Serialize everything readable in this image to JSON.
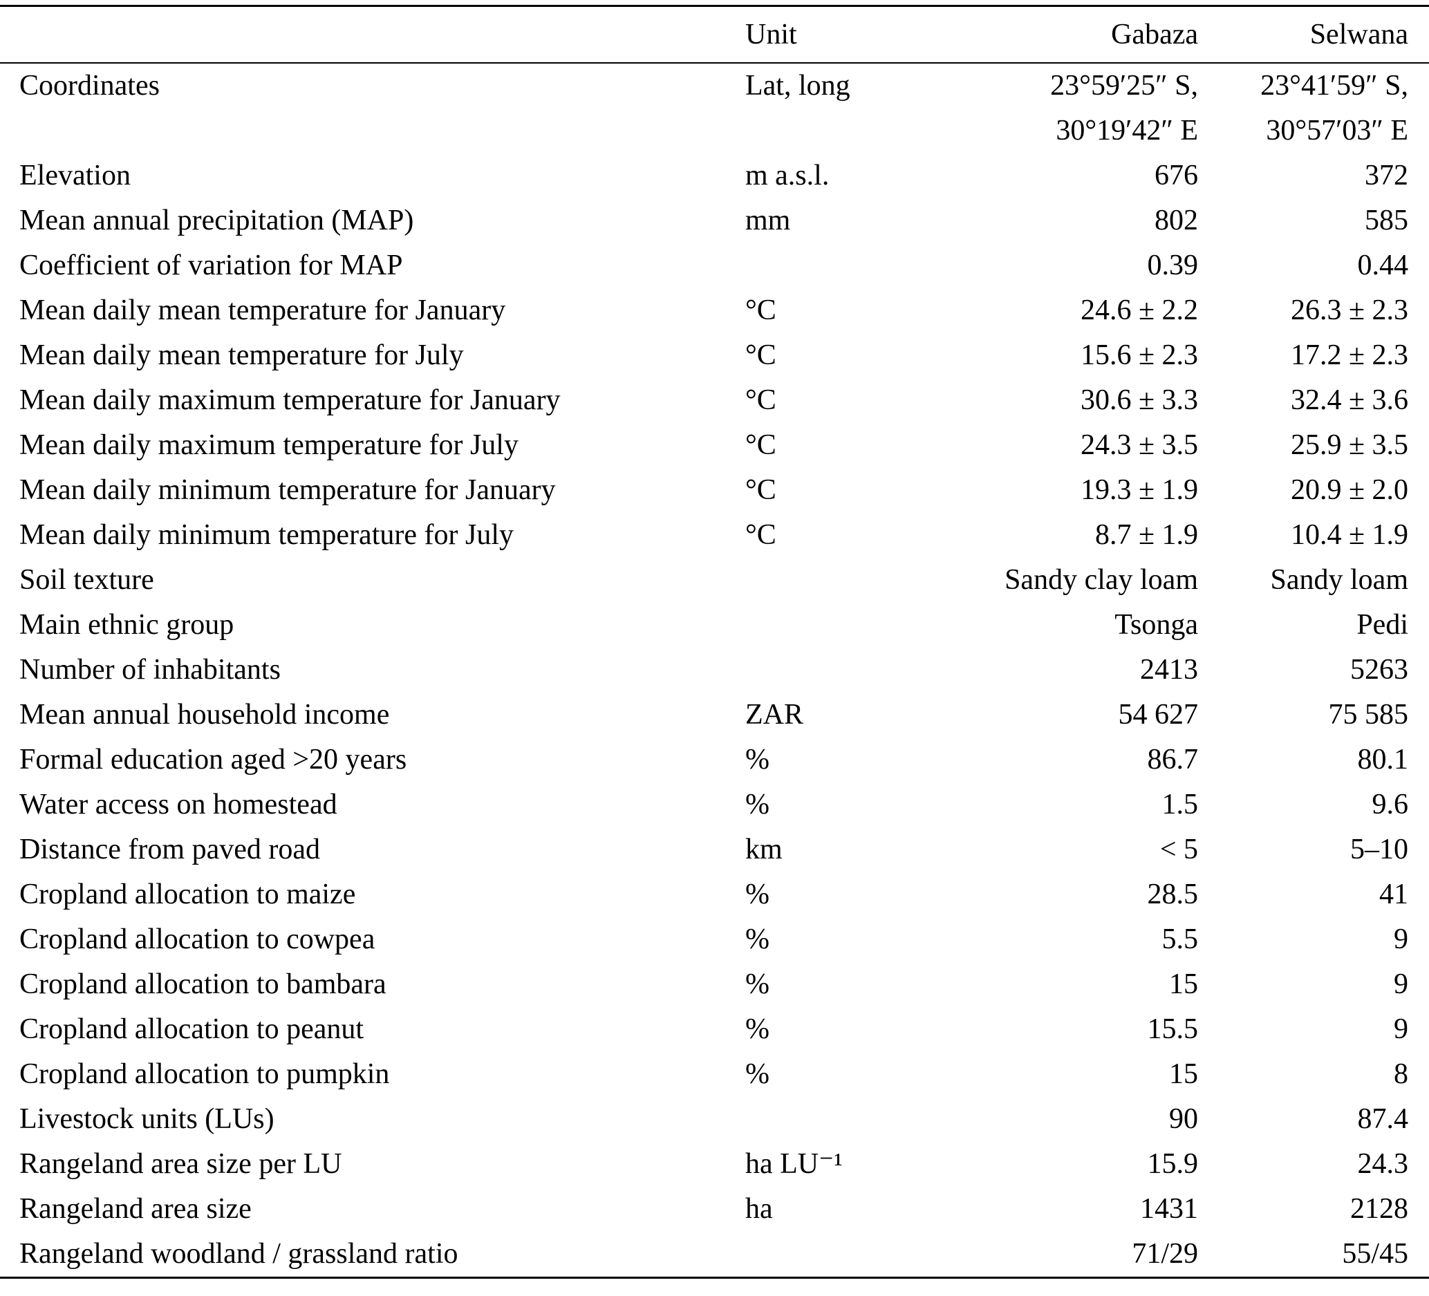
{
  "table": {
    "columns": [
      "",
      "Unit",
      "Gabaza",
      "Selwana"
    ],
    "rows": [
      {
        "label": "Coordinates",
        "unit": "Lat, long",
        "gabaza": "23°59′25″ S,\n30°19′42″ E",
        "selwana": "23°41′59″ S,\n30°57′03″ E"
      },
      {
        "label": "Elevation",
        "unit": "m a.s.l.",
        "gabaza": "676",
        "selwana": "372"
      },
      {
        "label": "Mean annual precipitation (MAP)",
        "unit": "mm",
        "gabaza": "802",
        "selwana": "585"
      },
      {
        "label": "Coefficient of variation for MAP",
        "unit": "",
        "gabaza": "0.39",
        "selwana": "0.44"
      },
      {
        "label": "Mean daily mean temperature for January",
        "unit": "°C",
        "gabaza": "24.6 ± 2.2",
        "selwana": "26.3 ± 2.3"
      },
      {
        "label": "Mean daily mean temperature for July",
        "unit": "°C",
        "gabaza": "15.6 ± 2.3",
        "selwana": "17.2 ± 2.3"
      },
      {
        "label": "Mean daily maximum temperature for January",
        "unit": "°C",
        "gabaza": "30.6 ± 3.3",
        "selwana": "32.4 ± 3.6"
      },
      {
        "label": "Mean daily maximum temperature for July",
        "unit": "°C",
        "gabaza": "24.3 ± 3.5",
        "selwana": "25.9 ± 3.5"
      },
      {
        "label": "Mean daily minimum temperature for January",
        "unit": "°C",
        "gabaza": "19.3 ± 1.9",
        "selwana": "20.9 ± 2.0"
      },
      {
        "label": "Mean daily minimum temperature for July",
        "unit": "°C",
        "gabaza": "8.7 ± 1.9",
        "selwana": "10.4 ± 1.9"
      },
      {
        "label": "Soil texture",
        "unit": "",
        "gabaza": "Sandy clay loam",
        "selwana": "Sandy loam"
      },
      {
        "label": "Main ethnic group",
        "unit": "",
        "gabaza": "Tsonga",
        "selwana": "Pedi"
      },
      {
        "label": "Number of inhabitants",
        "unit": "",
        "gabaza": "2413",
        "selwana": "5263"
      },
      {
        "label": "Mean annual household income",
        "unit": "ZAR",
        "gabaza": "54 627",
        "selwana": "75 585"
      },
      {
        "label": "Formal education aged >20 years",
        "unit": "%",
        "gabaza": "86.7",
        "selwana": "80.1"
      },
      {
        "label": "Water access on homestead",
        "unit": "%",
        "gabaza": "1.5",
        "selwana": "9.6"
      },
      {
        "label": "Distance from paved road",
        "unit": "km",
        "gabaza": "< 5",
        "selwana": "5–10"
      },
      {
        "label": "Cropland allocation to maize",
        "unit": "%",
        "gabaza": "28.5",
        "selwana": "41"
      },
      {
        "label": "Cropland allocation to cowpea",
        "unit": "%",
        "gabaza": "5.5",
        "selwana": "9"
      },
      {
        "label": "Cropland allocation to bambara",
        "unit": "%",
        "gabaza": "15",
        "selwana": "9"
      },
      {
        "label": "Cropland allocation to peanut",
        "unit": "%",
        "gabaza": "15.5",
        "selwana": "9"
      },
      {
        "label": "Cropland allocation to pumpkin",
        "unit": "%",
        "gabaza": "15",
        "selwana": "8"
      },
      {
        "label": "Livestock units (LUs)",
        "unit": "",
        "gabaza": "90",
        "selwana": "87.4"
      },
      {
        "label": "Rangeland area size per LU",
        "unit": "ha LU⁻¹",
        "gabaza": "15.9",
        "selwana": "24.3"
      },
      {
        "label": "Rangeland area size",
        "unit": "ha",
        "gabaza": "1431",
        "selwana": "2128"
      },
      {
        "label": "Rangeland woodland / grassland ratio",
        "unit": "",
        "gabaza": "71/29",
        "selwana": "55/45"
      }
    ]
  }
}
